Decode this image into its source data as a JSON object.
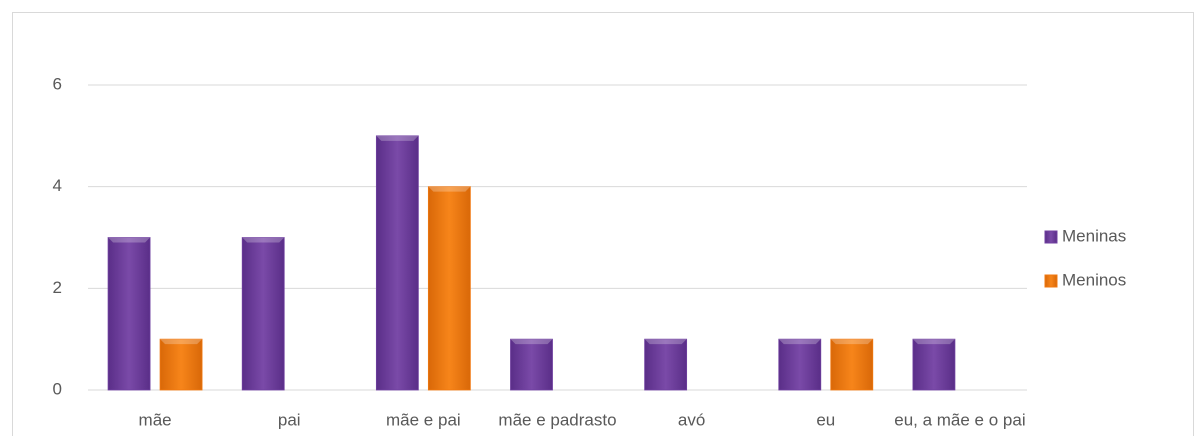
{
  "chart_data": {
    "type": "bar",
    "categories": [
      "mãe",
      "pai",
      "mãe e pai",
      "mãe e padrasto",
      "avó",
      "eu",
      "eu, a mãe e o pai"
    ],
    "series": [
      {
        "name": "Meninas",
        "color": "#7040a0",
        "values": [
          3,
          3,
          5,
          1,
          1,
          1,
          1
        ]
      },
      {
        "name": "Meninos",
        "color": "#f07810",
        "values": [
          1,
          0,
          4,
          0,
          0,
          1,
          0
        ]
      }
    ],
    "ylim": [
      0,
      6
    ],
    "yticks": [
      0,
      2,
      4,
      6
    ],
    "grid": true,
    "legend": "right"
  }
}
